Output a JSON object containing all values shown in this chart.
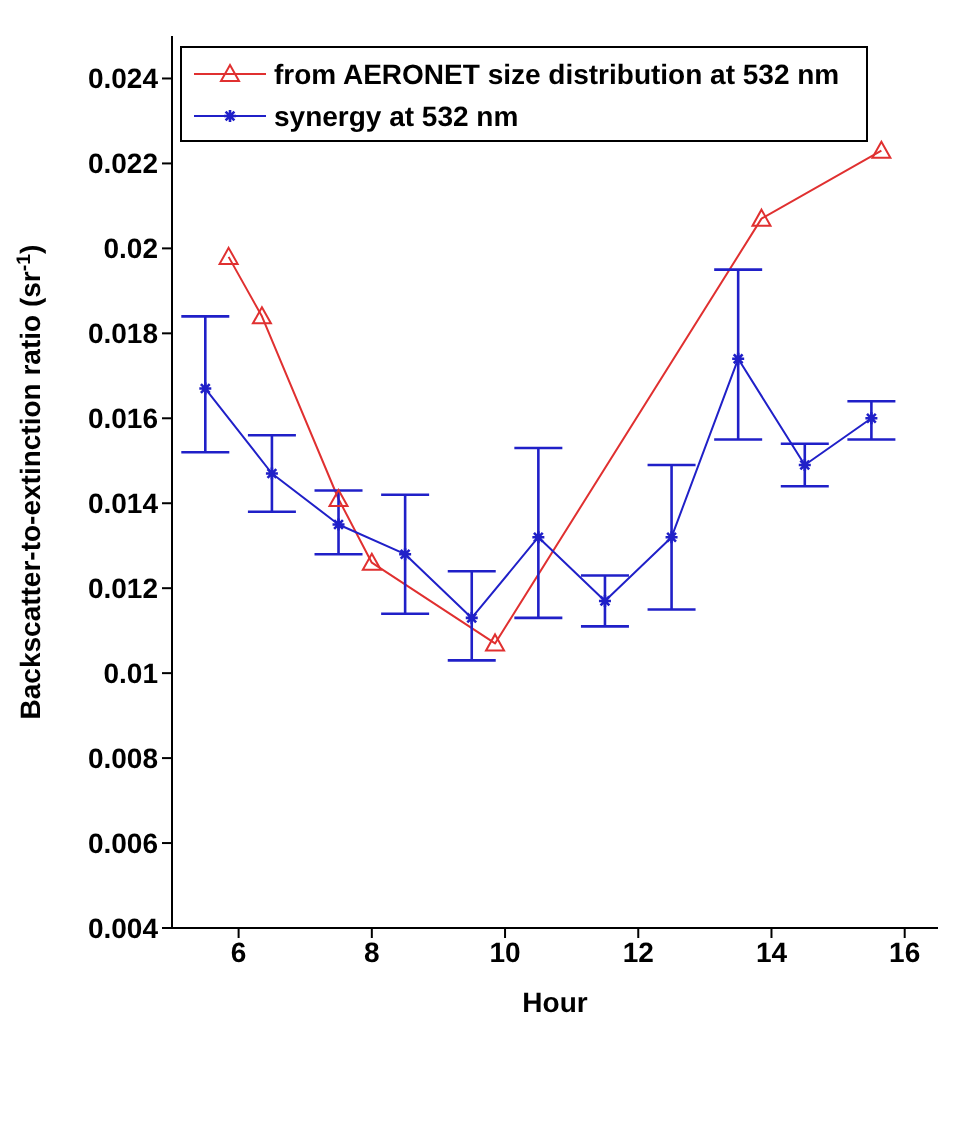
{
  "chart_data": {
    "type": "line",
    "xlabel": "Hour",
    "ylabel": "Backscatter-to-extinction ratio (sr$^{-1}$)",
    "xlim": [
      5,
      16.5
    ],
    "xticks": [
      6,
      8,
      10,
      12,
      14,
      16
    ],
    "ylim": [
      0.004,
      0.025
    ],
    "yticks": [
      0.004,
      0.006,
      0.008,
      0.01,
      0.012,
      0.014,
      0.016,
      0.018,
      0.02,
      0.022,
      0.024
    ],
    "legend": "top left",
    "grid": false,
    "line_style": "solid",
    "series": [
      {
        "name": "from AERONET size distribution at 532 nm",
        "color": "#e03030",
        "marker": "triangle",
        "x": [
          5.85,
          6.35,
          7.5,
          8.0,
          9.85,
          13.85,
          15.65
        ],
        "values": [
          0.0198,
          0.0184,
          0.0141,
          0.0126,
          0.0107,
          0.0207,
          0.0223
        ]
      },
      {
        "name": "synergy at 532 nm",
        "color": "#2020c8",
        "marker": "cross",
        "x": [
          5.5,
          6.5,
          7.5,
          8.5,
          9.5,
          10.5,
          11.5,
          12.5,
          13.5,
          14.5,
          15.5
        ],
        "values": [
          0.0167,
          0.0147,
          0.0135,
          0.0128,
          0.0113,
          0.0132,
          0.0117,
          0.0132,
          0.0174,
          0.0149,
          0.016
        ],
        "errors": [
          [
            0.0152,
            0.0184
          ],
          [
            0.0138,
            0.0156
          ],
          [
            0.0128,
            0.0143
          ],
          [
            0.0114,
            0.0142
          ],
          [
            0.0103,
            0.0124
          ],
          [
            0.0113,
            0.0153
          ],
          [
            0.0111,
            0.0123
          ],
          [
            0.0115,
            0.0149
          ],
          [
            0.0155,
            0.0195
          ],
          [
            0.0144,
            0.0154
          ],
          [
            0.0155,
            0.0164
          ]
        ]
      }
    ]
  }
}
